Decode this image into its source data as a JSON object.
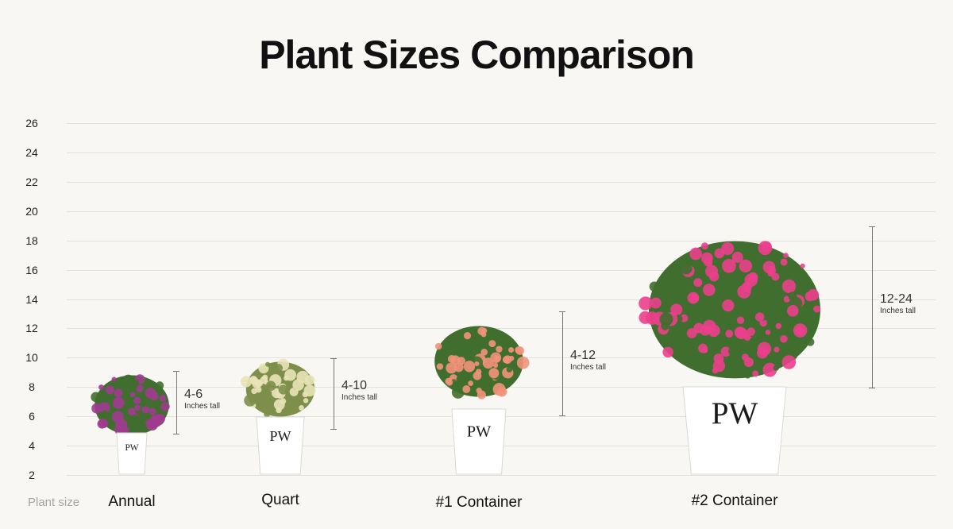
{
  "title": "Plant Sizes Comparison",
  "x_axis_caption": "Plant size",
  "chart_data": {
    "type": "bar",
    "title": "Plant Sizes Comparison",
    "xlabel": "Plant size",
    "ylabel": "",
    "ylim": [
      2,
      26
    ],
    "y_ticks": [
      "26",
      "24",
      "22",
      "20",
      "18",
      "16",
      "14",
      "12",
      "10",
      "8",
      "6",
      "4",
      "2"
    ],
    "grid": true,
    "categories": [
      "Annual",
      "Quart",
      "#1 Container",
      "#2 Container"
    ],
    "series": [
      {
        "values": [
          [
            4,
            6
          ],
          [
            4,
            10
          ],
          [
            4,
            12
          ],
          [
            12,
            24
          ]
        ]
      }
    ],
    "range_labels": [
      "4-6",
      "4-10",
      "4-12",
      "12-24"
    ],
    "range_unit": "Inches tall",
    "flower_colors": [
      "#a03b8f",
      "#e9e3b8",
      "#f2927a",
      "#ec3f8c"
    ]
  }
}
